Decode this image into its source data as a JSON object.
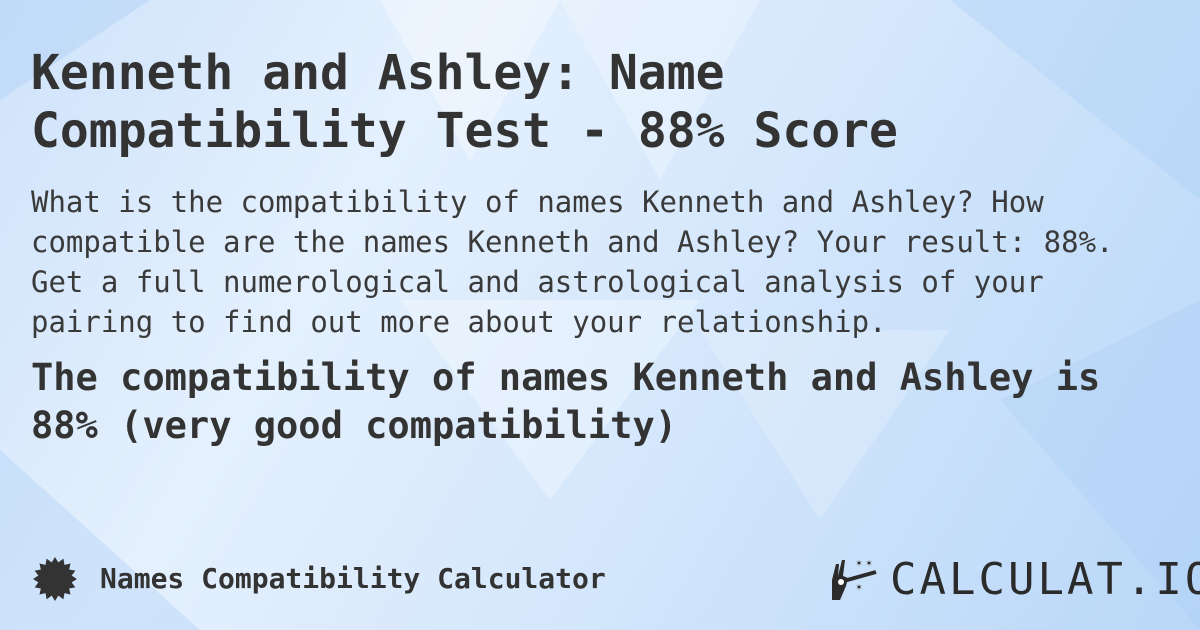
{
  "title_lines": [
    "Kenneth and Ashley: Name",
    "Compatibility Test - 88% Score"
  ],
  "description": "What is the compatibility of names Kenneth and Ashley? How compatible are the names Kenneth and Ashley? Your result: 88%. Get a full numerological and astrological analysis of your pairing to find out more about your relationship.",
  "result": "The compatibility of names Kenneth and Ashley is 88% (very good compatibility)",
  "footer": {
    "label": "Names Compatibility Calculator",
    "icon": "badge-icon",
    "logo_text": "CALCULAT.IO",
    "logo_icon": "magic-hand-wand-icon"
  },
  "colors": {
    "text": "#333333",
    "background": "#d6e8fc"
  }
}
